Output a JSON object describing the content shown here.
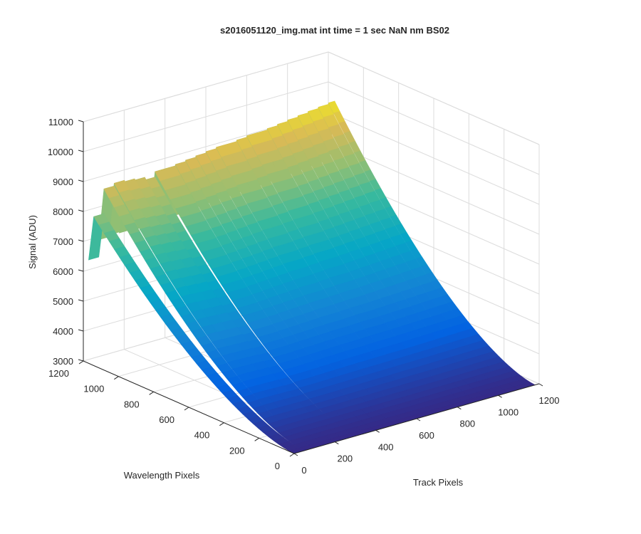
{
  "chart_data": {
    "type": "surface3d",
    "title": "s2016051120_img.mat int time = 1 sec  NaN nm BS02",
    "xlabel": "Track Pixels",
    "ylabel": "Wavelength Pixels",
    "zlabel": "Signal (ADU)",
    "xlim": [
      0,
      1200
    ],
    "ylim": [
      0,
      1200
    ],
    "zlim": [
      3000,
      11000
    ],
    "xticks": [
      0,
      200,
      400,
      600,
      800,
      1000,
      1200
    ],
    "yticks": [
      0,
      200,
      400,
      600,
      800,
      1000,
      1200
    ],
    "zticks": [
      3000,
      4000,
      5000,
      6000,
      7000,
      8000,
      9000,
      10000,
      11000
    ],
    "grid": true,
    "colormap": "parula",
    "surface_profile": {
      "track_pixels": [
        0,
        50,
        100,
        150,
        200,
        250,
        300,
        350,
        400,
        450,
        500,
        550,
        600,
        650,
        700,
        750,
        800,
        850,
        900,
        950,
        1000,
        1050,
        1100,
        1150
      ],
      "peak_signal_along_wavelength": [
        8400,
        9300,
        9400,
        9350,
        9300,
        9200,
        9400,
        9400,
        9450,
        9500,
        9550,
        9600,
        9650,
        9650,
        9700,
        9750,
        9750,
        9800,
        9850,
        9900,
        9950,
        10000,
        10050,
        10100
      ],
      "baseline_signal": 3000,
      "falloff_shape": "signal decreases from peak near wavelength pixel 1200 toward baseline by wavelength pixel ~0"
    }
  }
}
